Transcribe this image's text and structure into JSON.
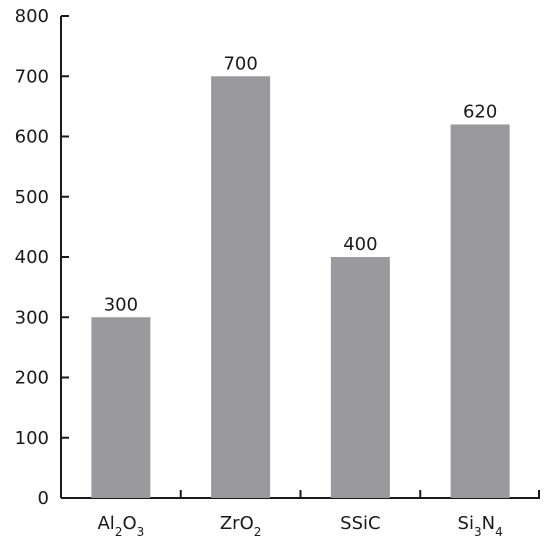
{
  "chart_data": {
    "type": "bar",
    "categories": [
      "Al2O3",
      "ZrO2",
      "SSiC",
      "Si3N4"
    ],
    "category_labels": [
      {
        "parts": [
          {
            "t": "Al",
            "sub": false
          },
          {
            "t": "2",
            "sub": true
          },
          {
            "t": "O",
            "sub": false
          },
          {
            "t": "3",
            "sub": true
          }
        ]
      },
      {
        "parts": [
          {
            "t": "ZrO",
            "sub": false
          },
          {
            "t": "2",
            "sub": true
          }
        ]
      },
      {
        "parts": [
          {
            "t": "SSiC",
            "sub": false
          }
        ]
      },
      {
        "parts": [
          {
            "t": "Si",
            "sub": false
          },
          {
            "t": "3",
            "sub": true
          },
          {
            "t": "N",
            "sub": false
          },
          {
            "t": "4",
            "sub": true
          }
        ]
      }
    ],
    "values": [
      300,
      700,
      400,
      620
    ],
    "data_labels": [
      "300",
      "700",
      "400",
      "620"
    ],
    "title": "",
    "xlabel": "",
    "ylabel": "",
    "ylim": [
      0,
      800
    ],
    "yticks": [
      0,
      100,
      200,
      300,
      400,
      500,
      600,
      700,
      800
    ],
    "grid": false,
    "legend": "none",
    "colors": {
      "bar": "#9a9a9e",
      "axis": "#1a1a1a",
      "text": "#1a1a1a"
    }
  }
}
